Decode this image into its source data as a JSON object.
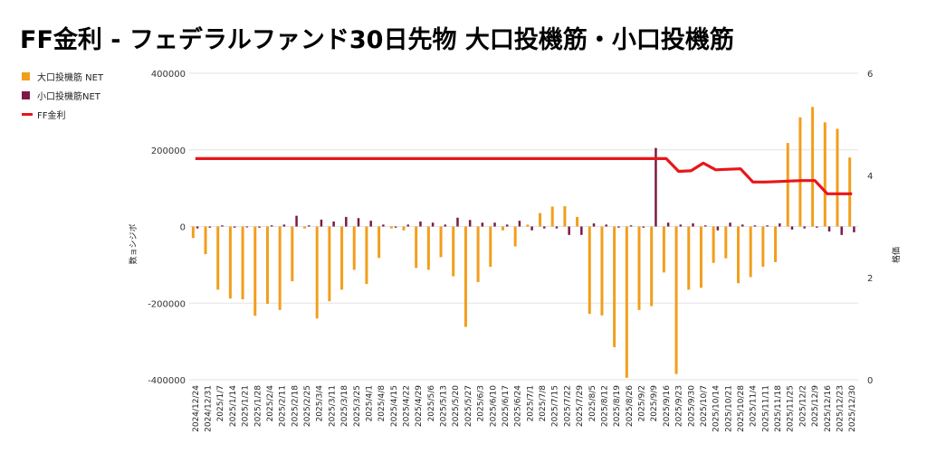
{
  "title": "FF金利 - フェデラルファンド30日先物 大口投機筋・小口投機筋",
  "legend": [
    {
      "label": "大口投機筋 NET",
      "color": "#f29e1c",
      "kind": "bar"
    },
    {
      "label": "小口投機筋NET",
      "color": "#7b1a47",
      "kind": "bar"
    },
    {
      "label": "FF金利",
      "color": "#e8161a",
      "kind": "line"
    }
  ],
  "chart_data": {
    "type": "bar",
    "title": "FF金利 - フェデラルファンド30日先物 大口投機筋・小口投機筋",
    "ylabel": "数ョシジボ",
    "y2label": "格価",
    "ylim": [
      -400000,
      400000
    ],
    "y2lim": [
      0,
      6
    ],
    "yticks": [
      "400000",
      "200000",
      "0",
      "-200000",
      "-400000"
    ],
    "y2ticks": [
      "6",
      "4",
      "2",
      "0"
    ],
    "grid": true,
    "legend_position": "top-left",
    "categories": [
      "2024/12/24",
      "2024/12/31",
      "2025/1/7",
      "2025/1/14",
      "2025/1/21",
      "2025/1/28",
      "2025/2/4",
      "2025/2/11",
      "2025/2/18",
      "2025/2/25",
      "2025/3/4",
      "2025/3/11",
      "2025/3/18",
      "2025/3/25",
      "2025/4/1",
      "2025/4/8",
      "2025/4/15",
      "2025/4/22",
      "2025/4/29",
      "2025/5/6",
      "2025/5/13",
      "2025/5/20",
      "2025/5/27",
      "2025/6/3",
      "2025/6/10",
      "2025/6/17",
      "2025/6/24",
      "2025/7/1",
      "2025/7/8",
      "2025/7/15",
      "2025/7/22",
      "2025/7/29",
      "2025/8/5",
      "2025/8/12",
      "2025/8/19",
      "2025/8/26",
      "2025/9/2",
      "2025/9/9",
      "2025/9/16",
      "2025/9/23",
      "2025/9/30",
      "2025/10/7",
      "2025/10/14",
      "2025/10/21",
      "2025/10/28",
      "2025/11/4",
      "2025/11/11",
      "2025/11/18",
      "2025/11/25",
      "2025/12/2",
      "2025/12/9",
      "2025/12/16",
      "2025/12/23",
      "2025/12/30"
    ],
    "series": [
      {
        "name": "大口投機筋 NET",
        "color": "#f29e1c",
        "values": [
          -30000,
          -72000,
          -165000,
          -188000,
          -190000,
          -233000,
          -202000,
          -218000,
          -143000,
          -5000,
          -240000,
          -195000,
          -165000,
          -113000,
          -150000,
          -82000,
          -5000,
          -10000,
          -108000,
          -113000,
          -80000,
          -130000,
          -262000,
          -145000,
          -105000,
          -10000,
          -52000,
          5000,
          35000,
          52000,
          53000,
          25000,
          -228000,
          -232000,
          -315000,
          -395000,
          -218000,
          -208000,
          -120000,
          -385000,
          -165000,
          -160000,
          -95000,
          -83000,
          -148000,
          -132000,
          -105000,
          -93000,
          218000,
          285000,
          312000,
          272000,
          255000,
          180000
        ]
      },
      {
        "name": "小口投機筋NET",
        "color": "#7b1a47",
        "values": [
          -5000,
          -3000,
          3000,
          -3000,
          -2000,
          -3000,
          3000,
          5000,
          28000,
          3000,
          18000,
          13000,
          25000,
          22000,
          15000,
          5000,
          -3000,
          5000,
          13000,
          10000,
          5000,
          23000,
          17000,
          10000,
          10000,
          5000,
          15000,
          -10000,
          -5000,
          -5000,
          -22000,
          -22000,
          8000,
          5000,
          -3000,
          3000,
          -3000,
          205000,
          10000,
          5000,
          8000,
          3000,
          -10000,
          10000,
          5000,
          3000,
          3000,
          8000,
          -8000,
          -5000,
          -3000,
          -13000,
          -22000,
          -15000
        ]
      },
      {
        "name": "FF金利",
        "color": "#e8161a",
        "values": [
          4.33,
          4.33,
          4.33,
          4.33,
          4.33,
          4.33,
          4.33,
          4.33,
          4.33,
          4.33,
          4.33,
          4.33,
          4.33,
          4.33,
          4.33,
          4.33,
          4.33,
          4.33,
          4.33,
          4.33,
          4.33,
          4.33,
          4.33,
          4.33,
          4.33,
          4.33,
          4.33,
          4.33,
          4.33,
          4.33,
          4.33,
          4.33,
          4.33,
          4.33,
          4.33,
          4.33,
          4.33,
          4.33,
          4.33,
          4.08,
          4.09,
          4.24,
          4.11,
          4.12,
          4.13,
          3.87,
          3.87,
          3.88,
          3.89,
          3.9,
          3.9,
          3.64,
          3.64,
          3.64
        ]
      }
    ]
  }
}
